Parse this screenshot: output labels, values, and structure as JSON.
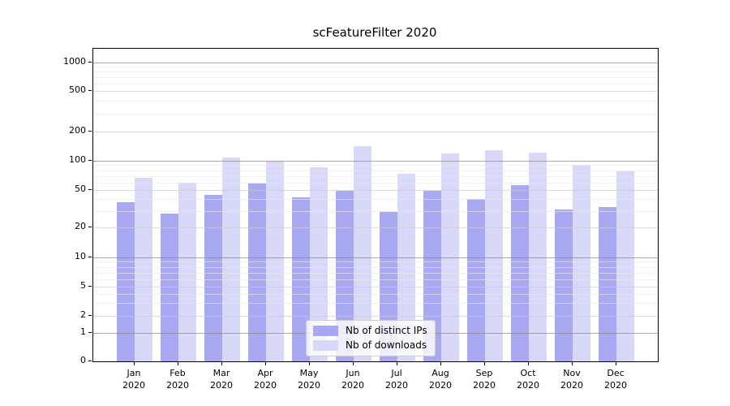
{
  "title": "scFeatureFilter 2020",
  "chart_data": {
    "type": "bar",
    "title": "scFeatureFilter 2020",
    "months": [
      "Jan",
      "Feb",
      "Mar",
      "Apr",
      "May",
      "Jun",
      "Jul",
      "Aug",
      "Sep",
      "Oct",
      "Nov",
      "Dec"
    ],
    "year_label": "2020",
    "categories": [
      "Jan 2020",
      "Feb 2020",
      "Mar 2020",
      "Apr 2020",
      "May 2020",
      "Jun 2020",
      "Jul 2020",
      "Aug 2020",
      "Sep 2020",
      "Oct 2020",
      "Nov 2020",
      "Dec 2020"
    ],
    "series": [
      {
        "name": "Nb of distinct IPs",
        "color": "#a9a9f3",
        "values": [
          37,
          28,
          44,
          58,
          42,
          49,
          29,
          49,
          40,
          56,
          31,
          33
        ]
      },
      {
        "name": "Nb of downloads",
        "color": "#d8d8f8",
        "values": [
          67,
          60,
          108,
          100,
          86,
          142,
          73,
          118,
          129,
          121,
          91,
          78
        ]
      }
    ],
    "y_axis": {
      "scale": "symlog",
      "ticks": [
        0,
        1,
        2,
        5,
        10,
        20,
        50,
        100,
        200,
        500,
        1000
      ],
      "tick_labels": [
        "0",
        "1",
        "2",
        "5",
        "10",
        "20",
        "50",
        "100",
        "200",
        "500",
        "1000"
      ],
      "minor_ticks": [
        3,
        4,
        6,
        7,
        8,
        9,
        30,
        40,
        60,
        70,
        80,
        90,
        300,
        400,
        600,
        700,
        800,
        900
      ],
      "decade_ticks": [
        1,
        10,
        100,
        1000
      ],
      "ylim": [
        0,
        1400
      ],
      "grid": "both, drawn above bars"
    },
    "xlabel": "",
    "ylabel": "",
    "legend": {
      "position": "lower center",
      "entries": [
        "Nb of distinct IPs",
        "Nb of downloads"
      ]
    }
  },
  "colors": {
    "background": "#ffffff",
    "spine": "#000000",
    "grid_decade": "#8c8c8c",
    "grid_mid": "#cdcdcd",
    "grid_minor": "#e8e8e8",
    "legend_border": "#cccccc"
  }
}
